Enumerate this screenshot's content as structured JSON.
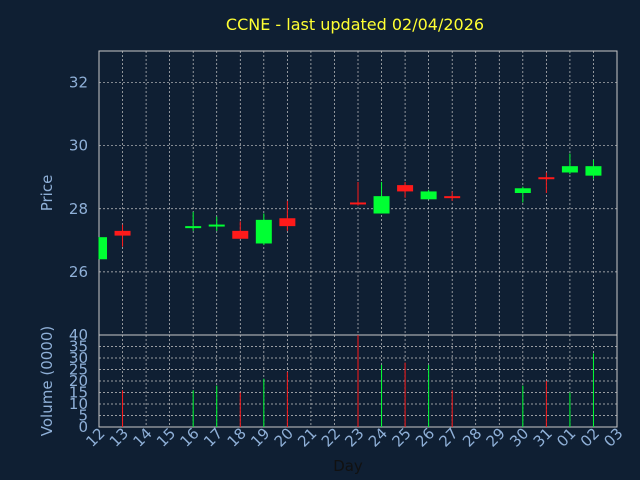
{
  "chart_data": {
    "type": "candlestick",
    "title": "CCNE - last updated 02/04/2026",
    "xlabel": "Day",
    "price_ylabel": "Price",
    "volume_ylabel": "Volume (0000)",
    "x_ticks": [
      "12",
      "13",
      "14",
      "15",
      "16",
      "17",
      "18",
      "19",
      "20",
      "21",
      "22",
      "23",
      "24",
      "25",
      "26",
      "27",
      "28",
      "29",
      "30",
      "31",
      "01",
      "02",
      "03"
    ],
    "price_ylim": [
      24.0,
      33.0
    ],
    "price_ticks": [
      26,
      28,
      30,
      32
    ],
    "volume_ylim": [
      0,
      40
    ],
    "volume_ticks": [
      0,
      5,
      10,
      15,
      20,
      25,
      30,
      35,
      40
    ],
    "grid": true,
    "colors": {
      "up": "#00ff33",
      "down": "#ff1a1a",
      "grid": "#c8c8c8",
      "background": "#0f1f33",
      "title": "#ffff33",
      "axis_text": "#8fb0d8"
    },
    "candles": [
      {
        "day": "12",
        "open": 26.4,
        "high": 27.1,
        "low": 26.4,
        "close": 27.1,
        "volume": 0
      },
      {
        "day": "13",
        "open": 27.3,
        "high": 27.5,
        "low": 26.8,
        "close": 27.15,
        "volume": 16
      },
      {
        "day": "16",
        "open": 27.4,
        "high": 27.9,
        "low": 27.3,
        "close": 27.45,
        "volume": 16
      },
      {
        "day": "17",
        "open": 27.45,
        "high": 27.75,
        "low": 27.3,
        "close": 27.5,
        "volume": 18
      },
      {
        "day": "18",
        "open": 27.3,
        "high": 27.6,
        "low": 27.05,
        "close": 27.05,
        "volume": 15
      },
      {
        "day": "19",
        "open": 26.9,
        "high": 27.85,
        "low": 26.85,
        "close": 27.65,
        "volume": 21
      },
      {
        "day": "20",
        "open": 27.7,
        "high": 28.25,
        "low": 27.3,
        "close": 27.45,
        "volume": 24
      },
      {
        "day": "23",
        "open": 28.2,
        "high": 28.85,
        "low": 28.1,
        "close": 28.15,
        "volume": 40
      },
      {
        "day": "24",
        "open": 27.85,
        "high": 28.85,
        "low": 27.85,
        "close": 28.4,
        "volume": 27
      },
      {
        "day": "25",
        "open": 28.75,
        "high": 28.85,
        "low": 28.35,
        "close": 28.55,
        "volume": 28
      },
      {
        "day": "26",
        "open": 28.3,
        "high": 28.6,
        "low": 28.3,
        "close": 28.55,
        "volume": 27
      },
      {
        "day": "27",
        "open": 28.4,
        "high": 28.55,
        "low": 28.25,
        "close": 28.35,
        "volume": 16
      },
      {
        "day": "30",
        "open": 28.5,
        "high": 28.7,
        "low": 28.2,
        "close": 28.65,
        "volume": 18
      },
      {
        "day": "31",
        "open": 29.0,
        "high": 29.15,
        "low": 28.5,
        "close": 28.95,
        "volume": 20
      },
      {
        "day": "01",
        "open": 29.15,
        "high": 29.75,
        "low": 29.1,
        "close": 29.35,
        "volume": 15
      },
      {
        "day": "02",
        "open": 29.05,
        "high": 29.55,
        "low": 28.95,
        "close": 29.35,
        "volume": 32
      }
    ]
  }
}
